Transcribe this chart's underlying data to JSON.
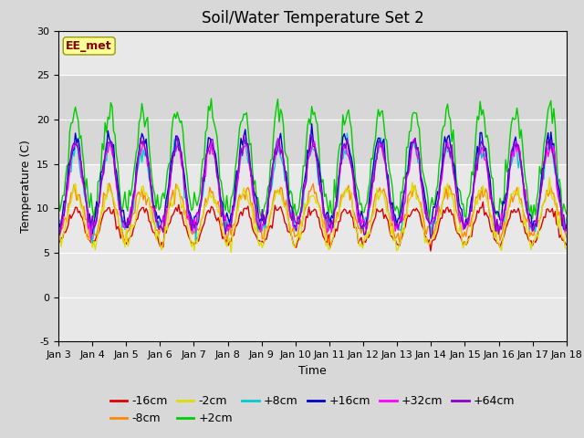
{
  "title": "Soil/Water Temperature Set 2",
  "xlabel": "Time",
  "ylabel": "Temperature (C)",
  "station_label": "EE_met",
  "ylim": [
    -5,
    30
  ],
  "xlim": [
    0,
    15
  ],
  "x_tick_labels": [
    "Jan 3",
    "Jan 4",
    "Jan 5",
    "Jan 6",
    "Jan 7",
    "Jan 8",
    "Jan 9",
    "Jan 10",
    "Jan 11",
    "Jan 12",
    "Jan 13",
    "Jan 14",
    "Jan 15",
    "Jan 16",
    "Jan 17",
    "Jan 18"
  ],
  "series_order": [
    "-16cm",
    "-8cm",
    "-2cm",
    "+2cm",
    "+8cm",
    "+16cm",
    "+32cm",
    "+64cm"
  ],
  "series_colors": {
    "-16cm": "#dd0000",
    "-8cm": "#ff8800",
    "-2cm": "#dddd00",
    "+2cm": "#00cc00",
    "+8cm": "#00cccc",
    "+16cm": "#0000cc",
    "+32cm": "#ff00ff",
    "+64cm": "#8800cc"
  },
  "plot_bg_color": "#e8e8e8",
  "fig_bg_color": "#d8d8d8",
  "grid_color": "#ffffff",
  "title_fontsize": 12,
  "label_fontsize": 9,
  "tick_fontsize": 8,
  "legend_fontsize": 9,
  "linewidth": 1.0,
  "yticks": [
    -5,
    0,
    5,
    10,
    15,
    20,
    25,
    30
  ],
  "shaded_band": [
    15,
    25
  ]
}
